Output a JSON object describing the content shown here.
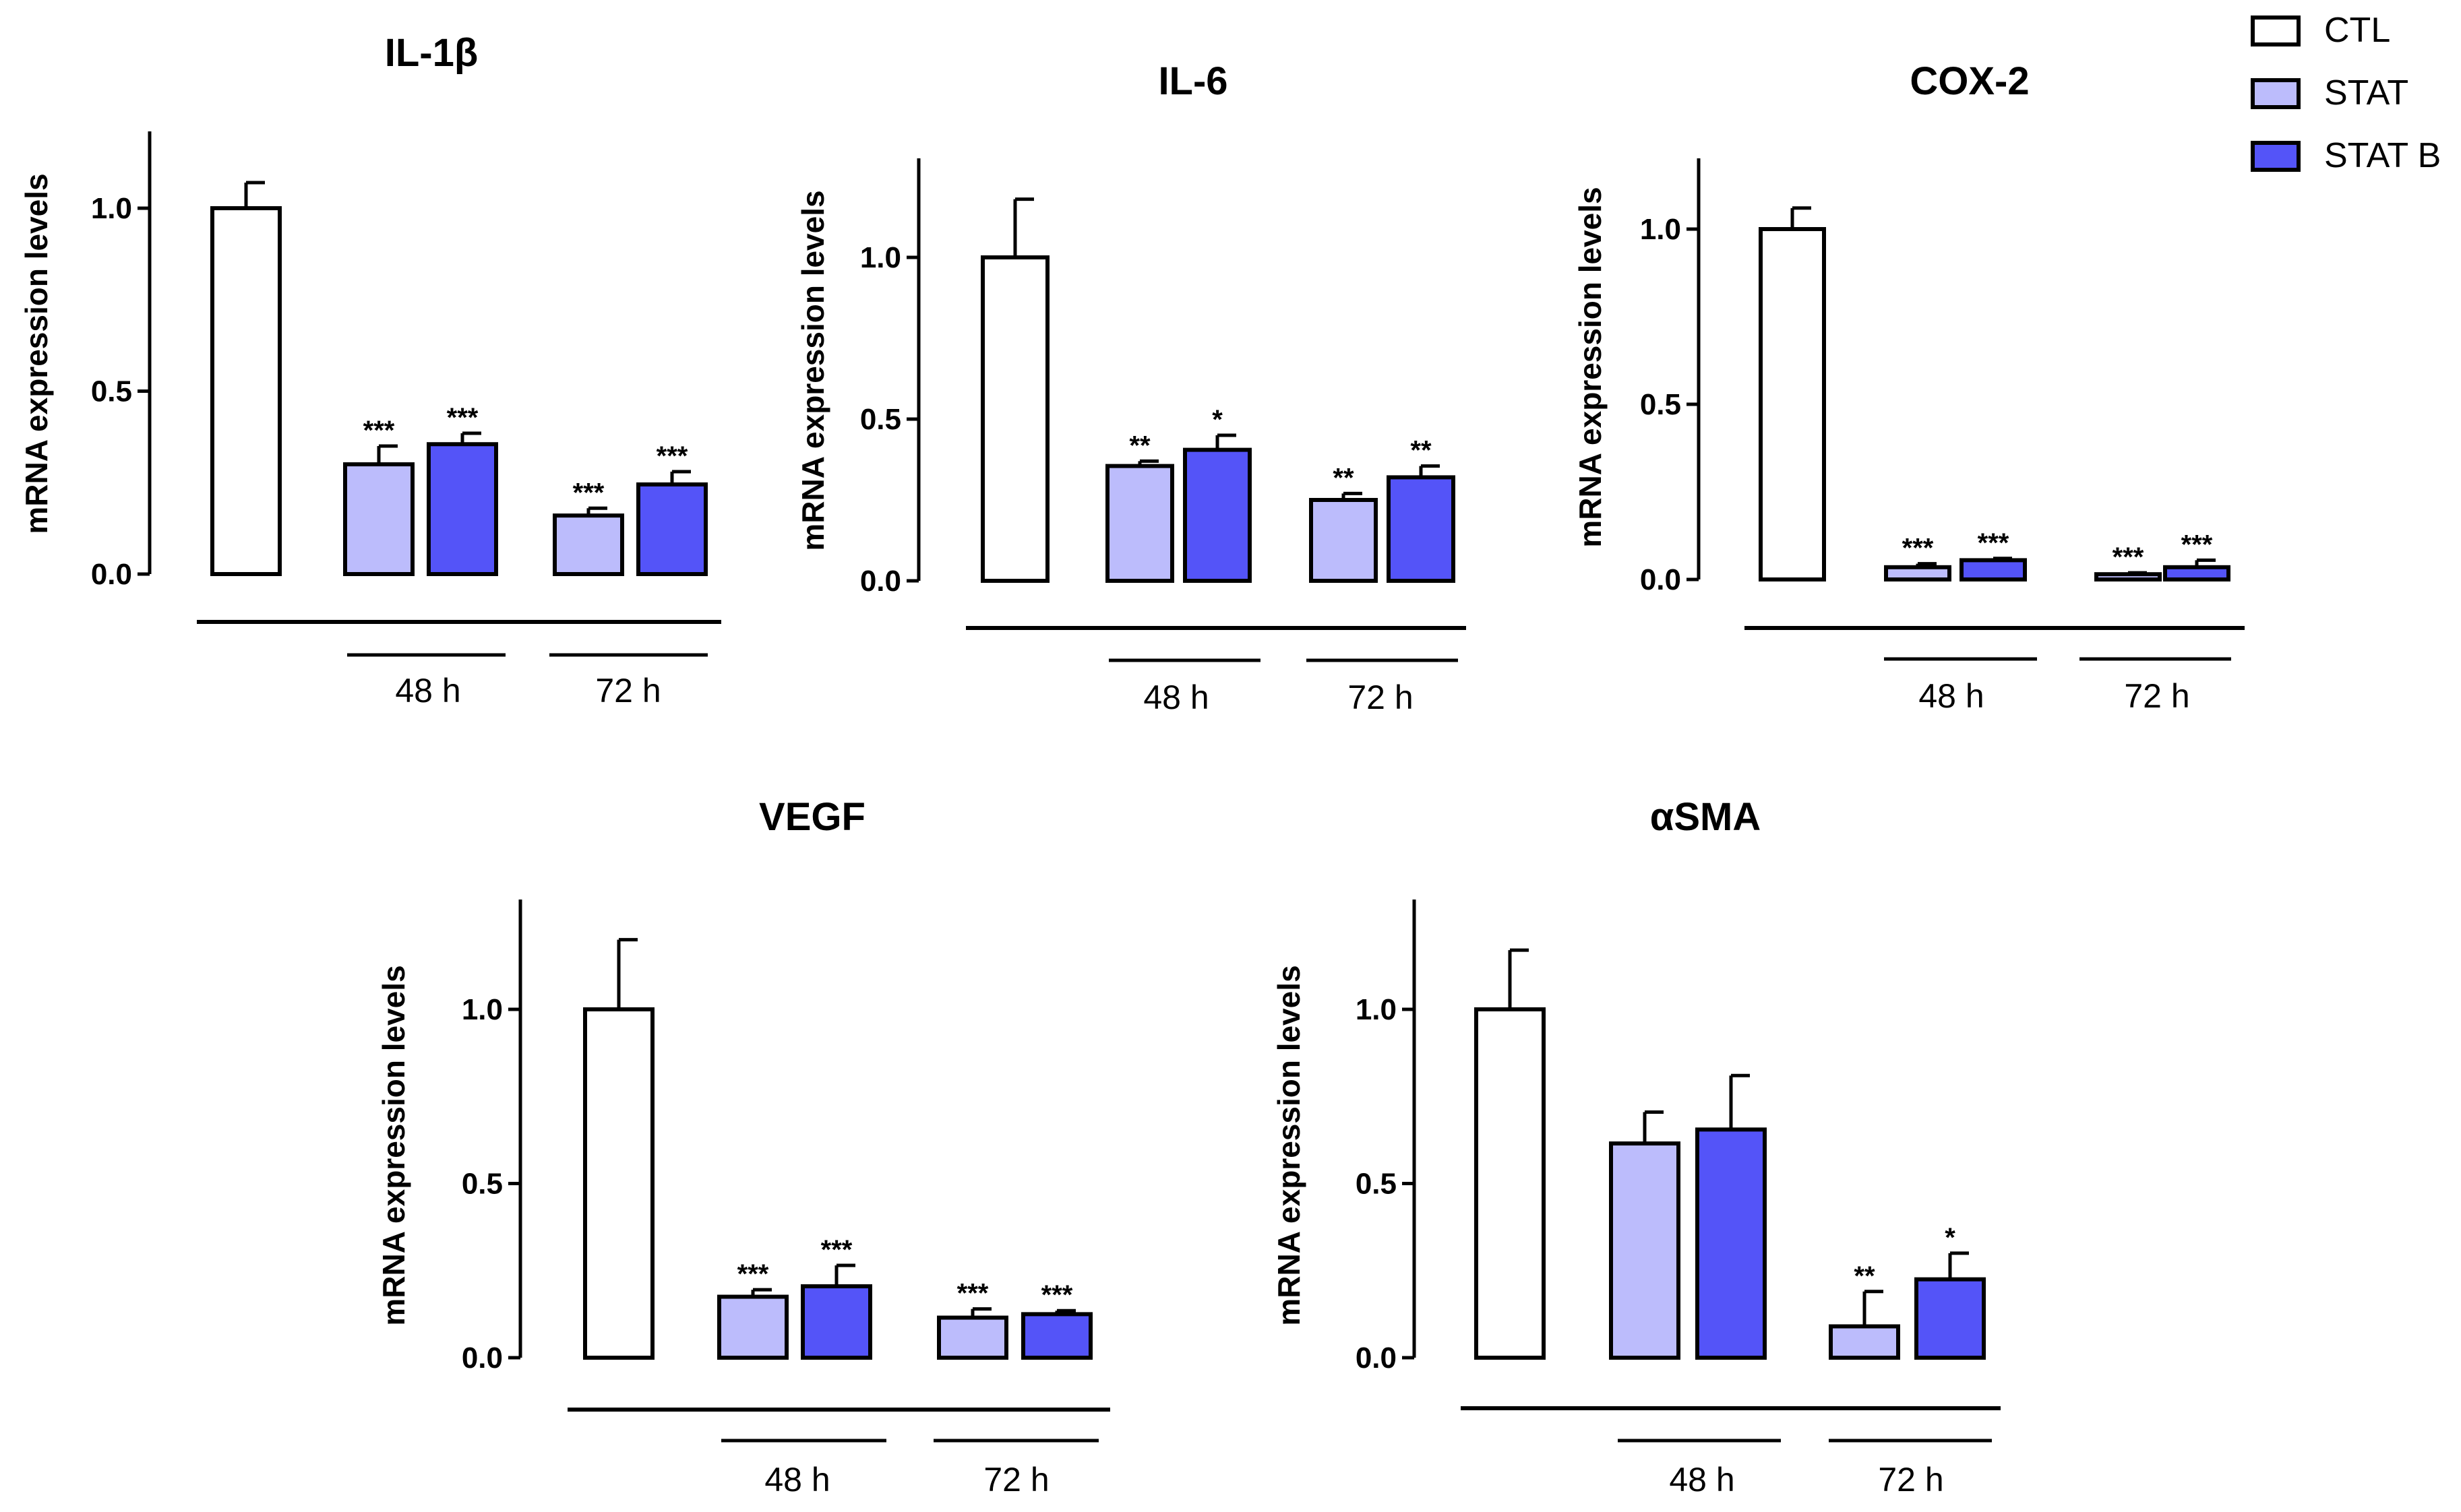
{
  "figure": {
    "legend": [
      {
        "label": "CTL",
        "color": "#ffffff"
      },
      {
        "label": "STAT",
        "color": "#bcbcfc"
      },
      {
        "label": "STAT B",
        "color": "#5454f8"
      }
    ],
    "group_labels": [
      "48 h",
      "72 h"
    ]
  },
  "chart_data": [
    {
      "type": "bar",
      "title": "IL-1β",
      "ylabel": "mRNA expression levels",
      "ylim": [
        0,
        1.2
      ],
      "yticks": [
        "0.0",
        "0.5",
        "1.0"
      ],
      "bars": [
        {
          "series": "CTL",
          "value": 1.0,
          "error": 0.07,
          "sig": ""
        },
        {
          "series": "STAT",
          "time": "48 h",
          "value": 0.3,
          "error": 0.05,
          "sig": "***"
        },
        {
          "series": "STAT B",
          "time": "48 h",
          "value": 0.355,
          "error": 0.03,
          "sig": "***"
        },
        {
          "series": "STAT",
          "time": "72 h",
          "value": 0.16,
          "error": 0.02,
          "sig": "***"
        },
        {
          "series": "STAT B",
          "time": "72 h",
          "value": 0.245,
          "error": 0.035,
          "sig": "***"
        }
      ]
    },
    {
      "type": "bar",
      "title": "IL-6",
      "ylabel": "mRNA expression levels",
      "ylim": [
        0,
        1.3
      ],
      "yticks": [
        "0.0",
        "0.5",
        "1.0"
      ],
      "bars": [
        {
          "series": "CTL",
          "value": 1.0,
          "error": 0.18,
          "sig": ""
        },
        {
          "series": "STAT",
          "time": "48 h",
          "value": 0.355,
          "error": 0.015,
          "sig": "**"
        },
        {
          "series": "STAT B",
          "time": "48 h",
          "value": 0.405,
          "error": 0.045,
          "sig": "*"
        },
        {
          "series": "STAT",
          "time": "72 h",
          "value": 0.25,
          "error": 0.02,
          "sig": "**"
        },
        {
          "series": "STAT B",
          "time": "72 h",
          "value": 0.32,
          "error": 0.035,
          "sig": "**"
        }
      ]
    },
    {
      "type": "bar",
      "title": "COX-2",
      "ylabel": "mRNA expression levels",
      "ylim": [
        0,
        1.2
      ],
      "yticks": [
        "0.0",
        "0.5",
        "1.0"
      ],
      "bars": [
        {
          "series": "CTL",
          "value": 1.0,
          "error": 0.06,
          "sig": ""
        },
        {
          "series": "STAT",
          "time": "48 h",
          "value": 0.035,
          "error": 0.01,
          "sig": "***"
        },
        {
          "series": "STAT B",
          "time": "48 h",
          "value": 0.055,
          "error": 0.005,
          "sig": "***"
        },
        {
          "series": "STAT",
          "time": "72 h",
          "value": 0.015,
          "error": 0.004,
          "sig": "***"
        },
        {
          "series": "STAT B",
          "time": "72 h",
          "value": 0.035,
          "error": 0.02,
          "sig": "***"
        }
      ]
    },
    {
      "type": "bar",
      "title": "VEGF",
      "ylabel": "mRNA expression levels",
      "ylim": [
        0,
        1.3
      ],
      "yticks": [
        "0.0",
        "0.5",
        "1.0"
      ],
      "bars": [
        {
          "series": "CTL",
          "value": 1.0,
          "error": 0.2,
          "sig": ""
        },
        {
          "series": "STAT",
          "time": "48 h",
          "value": 0.175,
          "error": 0.02,
          "sig": "***"
        },
        {
          "series": "STAT B",
          "time": "48 h",
          "value": 0.205,
          "error": 0.06,
          "sig": "***"
        },
        {
          "series": "STAT",
          "time": "72 h",
          "value": 0.115,
          "error": 0.025,
          "sig": "***"
        },
        {
          "series": "STAT B",
          "time": "72 h",
          "value": 0.125,
          "error": 0.01,
          "sig": "***"
        }
      ]
    },
    {
      "type": "bar",
      "title": "αSMA",
      "ylabel": "mRNA expression levels",
      "ylim": [
        0,
        1.3
      ],
      "yticks": [
        "0.0",
        "0.5",
        "1.0"
      ],
      "bars": [
        {
          "series": "CTL",
          "value": 1.0,
          "error": 0.17,
          "sig": ""
        },
        {
          "series": "STAT",
          "time": "48 h",
          "value": 0.615,
          "error": 0.09,
          "sig": ""
        },
        {
          "series": "STAT B",
          "time": "48 h",
          "value": 0.655,
          "error": 0.155,
          "sig": ""
        },
        {
          "series": "STAT",
          "time": "72 h",
          "value": 0.09,
          "error": 0.1,
          "sig": "**"
        },
        {
          "series": "STAT B",
          "time": "72 h",
          "value": 0.225,
          "error": 0.075,
          "sig": "*"
        }
      ]
    }
  ]
}
